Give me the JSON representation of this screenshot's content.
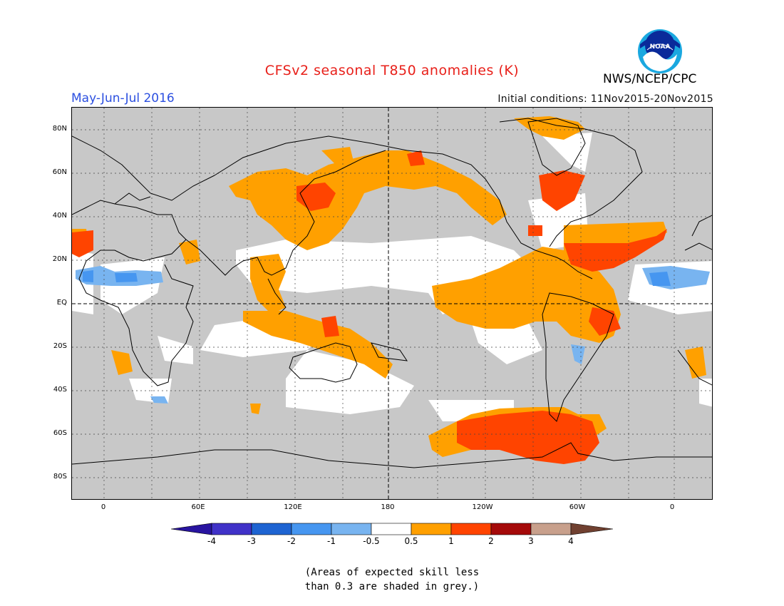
{
  "title": "CFSv2 seasonal T850 anomalies (K)",
  "season": "May-Jun-Jul 2016",
  "initial_conditions": "Initial conditions: 11Nov2015-20Nov2015",
  "agency": "NWS/NCEP/CPC",
  "logo_text": "NOAA",
  "colors": {
    "title": "#e8201a",
    "season": "#2b4fe0",
    "skill_grey": "#c8c8c8",
    "neutral": "#ffffff",
    "anom_pos_0_5_1": "#ffa000",
    "anom_pos_1_2": "#ff4400",
    "anom_pos_2_3": "#a50a0a",
    "anom_pos_3_4": "#c8a08c",
    "anom_pos_gt4": "#704030",
    "anom_neg_0_5_1": "#78b4f0",
    "anom_neg_1_2": "#4696f0",
    "anom_neg_2_3": "#1e64d2",
    "anom_neg_3_4": "#4032c8",
    "anom_neg_lt4": "#2814a0"
  },
  "lat_labels": [
    "80N",
    "60N",
    "40N",
    "20N",
    "EQ",
    "20S",
    "40S",
    "60S",
    "80S"
  ],
  "lon_labels": [
    "0",
    "60E",
    "120E",
    "180",
    "120W",
    "60W",
    "0"
  ],
  "colorbar": {
    "ticks": [
      "-4",
      "-3",
      "-2",
      "-1",
      "-0.5",
      "0.5",
      "1",
      "2",
      "3",
      "4"
    ]
  },
  "note_line1": "(Areas of expected skill less",
  "note_line2": "than 0.3 are shaded in grey.)"
}
